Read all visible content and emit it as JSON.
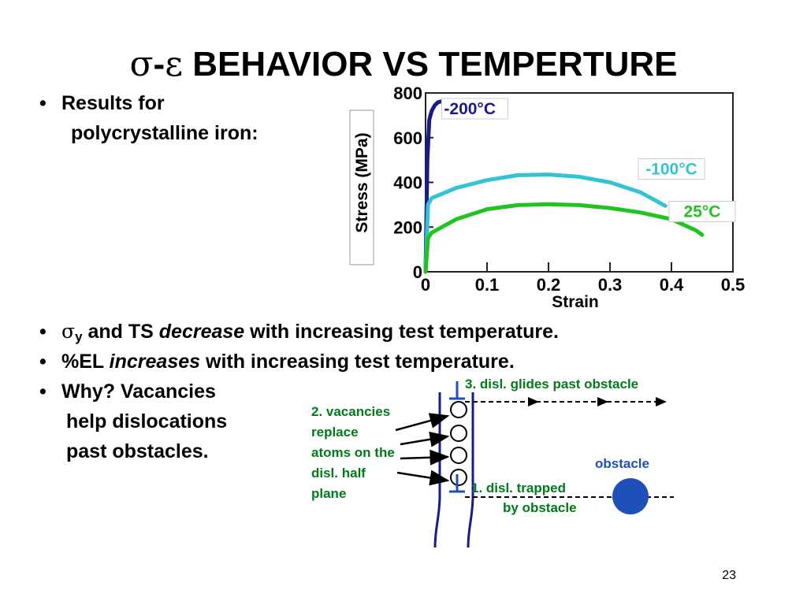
{
  "slide": {
    "title_sym_sigma": "σ",
    "title_dash": "-",
    "title_sym_eps": "ε",
    "title_text": " BEHAVIOR VS TEMPERTURE",
    "bullet1_line1": "Results for",
    "bullet1_line2": "polycrystalline iron:",
    "bullet2_sigma": "σ",
    "bullet2_sub": "y",
    "bullet2_mid": " and TS ",
    "bullet2_ital": "decrease",
    "bullet2_end": " with increasing test temperature.",
    "bullet3_start": "%EL ",
    "bullet3_ital": "increases",
    "bullet3_end": " with increasing test temperature.",
    "bullet4_line1": "Why?  Vacancies",
    "bullet4_line2": "help dislocations",
    "bullet4_line3": "past obstacles.",
    "bullet_char": "•",
    "page_number": "23"
  },
  "chart_data": {
    "type": "line",
    "xlabel": "Strain",
    "ylabel": "Stress (MPa)",
    "xlim": [
      0,
      0.5
    ],
    "ylim": [
      0,
      800
    ],
    "x_ticks": [
      "0",
      "0.1",
      "0.2",
      "0.3",
      "0.4",
      "0.5"
    ],
    "y_ticks": [
      "0",
      "200",
      "400",
      "600",
      "800"
    ],
    "series": [
      {
        "name": "-200°C",
        "color": "#1a1a8c",
        "x": [
          0,
          0.003,
          0.006,
          0.01,
          0.015,
          0.02,
          0.025
        ],
        "y": [
          0,
          500,
          680,
          720,
          745,
          758,
          762
        ]
      },
      {
        "name": "-100°C",
        "color": "#33c4d4",
        "x": [
          0,
          0.004,
          0.01,
          0.05,
          0.1,
          0.15,
          0.2,
          0.25,
          0.3,
          0.35,
          0.39
        ],
        "y": [
          0,
          300,
          330,
          375,
          410,
          432,
          435,
          425,
          400,
          355,
          295
        ]
      },
      {
        "name": "25°C",
        "color": "#1fc41f",
        "x": [
          0,
          0.004,
          0.01,
          0.05,
          0.1,
          0.15,
          0.2,
          0.25,
          0.3,
          0.35,
          0.4,
          0.44,
          0.45
        ],
        "y": [
          0,
          150,
          175,
          235,
          280,
          298,
          302,
          298,
          285,
          265,
          235,
          185,
          165
        ]
      }
    ]
  },
  "diagram": {
    "label_glide": "3.  disl. glides past obstacle",
    "label_vac_1": "2. vacancies",
    "label_vac_2": "replace",
    "label_vac_3": "atoms on the",
    "label_vac_4": "disl. half",
    "label_vac_5": "plane",
    "label_obstacle": "obstacle",
    "label_trap_1": "1.  disl. trapped",
    "label_trap_2": "by obstacle",
    "colors": {
      "label": "#007a1a",
      "obstacle": "#1f4fb8",
      "obstacle_label": "#1f4fb8",
      "plane": "#1a1a8c"
    }
  }
}
